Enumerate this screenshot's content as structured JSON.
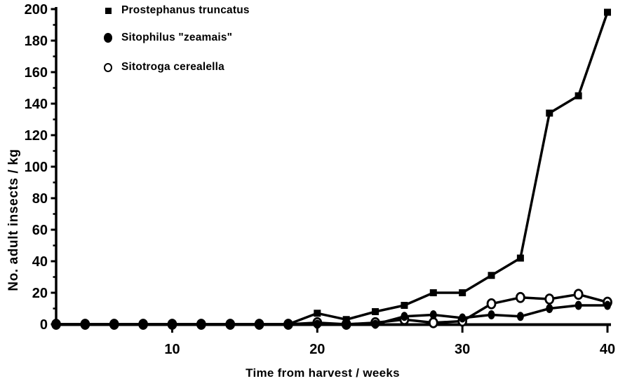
{
  "figure": {
    "background": "#ffffff",
    "ink_color": "#000000"
  },
  "legend": {
    "position": "top-left",
    "items": [
      {
        "label": "Prostephanus truncatus",
        "marker": "filled-square"
      },
      {
        "label": "Sitophilus \"zeamais\"",
        "marker": "filled-circle"
      },
      {
        "label": "Sitotroga cerealella",
        "marker": "open-circle"
      }
    ]
  },
  "chart_data": {
    "type": "line",
    "title": "",
    "xlabel": "Time from harvest / weeks",
    "ylabel": "No. adult insects / kg",
    "xlim": [
      2,
      40
    ],
    "ylim": [
      0,
      200
    ],
    "x_ticks": [
      10,
      20,
      30,
      40
    ],
    "y_ticks": [
      0,
      20,
      40,
      60,
      80,
      100,
      120,
      140,
      160,
      180,
      200
    ],
    "grid": false,
    "legend_position": "top-left",
    "x": [
      2,
      4,
      6,
      8,
      10,
      12,
      14,
      16,
      18,
      20,
      22,
      24,
      26,
      28,
      30,
      32,
      34,
      36,
      38,
      40
    ],
    "series": [
      {
        "name": "Prostephanus truncatus",
        "marker": "filled-square",
        "values": [
          0,
          0,
          0,
          0,
          0,
          0,
          0,
          0,
          0,
          7,
          3,
          8,
          12,
          20,
          20,
          31,
          42,
          134,
          145,
          198
        ]
      },
      {
        "name": "Sitophilus \"zeamais\"",
        "marker": "filled-circle",
        "values": [
          0,
          0,
          0,
          0,
          0,
          0,
          0,
          0,
          0,
          0,
          0,
          0,
          5,
          6,
          4,
          6,
          5,
          10,
          12,
          12
        ]
      },
      {
        "name": "Sitotroga cerealella",
        "marker": "open-circle",
        "values": [
          0,
          0,
          0,
          0,
          0,
          0,
          0,
          0,
          0,
          1,
          0,
          1,
          3,
          1,
          2,
          13,
          17,
          16,
          19,
          14
        ]
      }
    ]
  }
}
